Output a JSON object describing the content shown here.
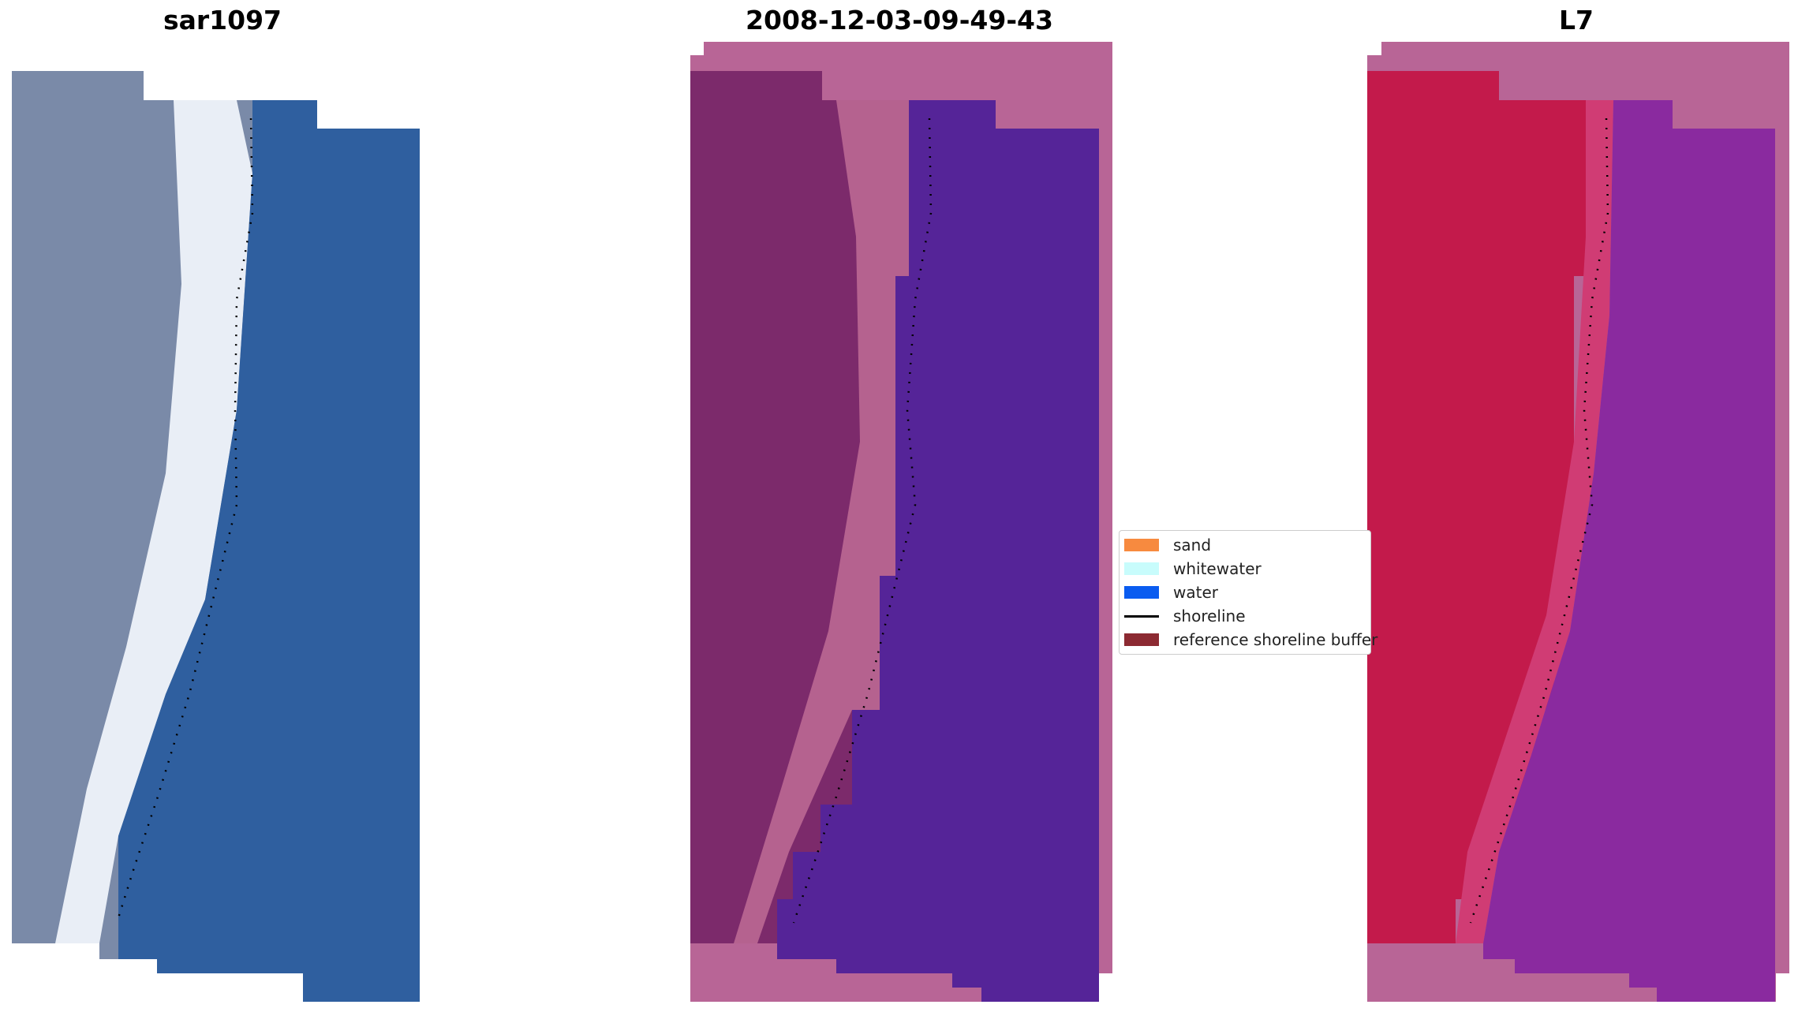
{
  "panels": [
    {
      "title": "sar1097"
    },
    {
      "title": "2008-12-03-09-49-43"
    },
    {
      "title": "L7"
    }
  ],
  "legend": {
    "items": [
      {
        "label": "sand",
        "kind": "patch",
        "color": "#f78a3f"
      },
      {
        "label": "whitewater",
        "kind": "patch",
        "color": "#c8fcfc"
      },
      {
        "label": "water",
        "kind": "patch",
        "color": "#0a5cf0"
      },
      {
        "label": "shoreline",
        "kind": "line",
        "color": "#000000"
      },
      {
        "label": "reference shoreline buffer",
        "kind": "patch",
        "color": "#8c2a32"
      }
    ]
  },
  "colors": {
    "rgb_land": "#7c8aa8",
    "rgb_whitewater": "#eaf0f7",
    "rgb_water": "#2f5e9c",
    "buffer_overlay": "#b86494",
    "classified_land": "#7e2a6c",
    "classified_water": "#54249a",
    "l7_land": "#c01b4c",
    "l7_water": "#8a2a9e"
  }
}
